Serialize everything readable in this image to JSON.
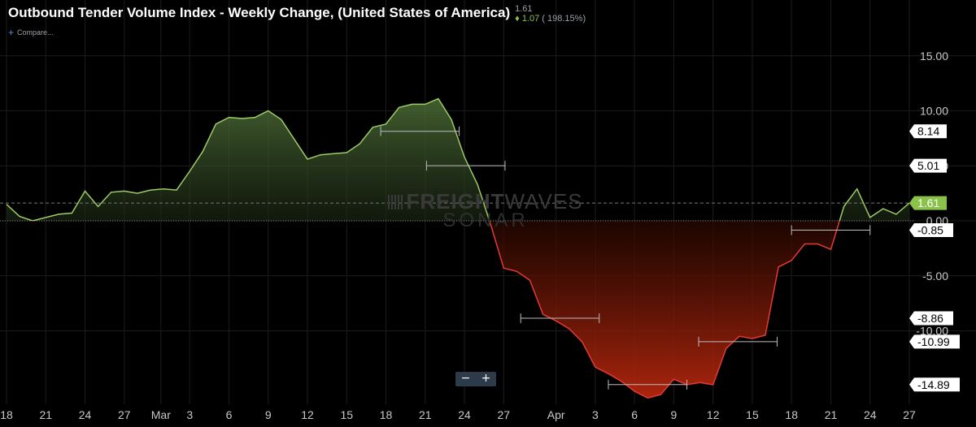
{
  "header": {
    "title": "Outbound Tender Volume Index - Weekly Change, (United States of America)",
    "last_value": "1.61",
    "change_arrow": "♦",
    "change": "1.07",
    "change_pct": "( 198.15%)"
  },
  "compare": {
    "label": "Compare...",
    "icon": "plus-icon"
  },
  "watermark": {
    "line1_bold": "FREIGHT",
    "line1_thin": "WAVES",
    "line2": "SONAR"
  },
  "zoom": {
    "minus": "−",
    "plus": "+"
  },
  "colors": {
    "background": "#000000",
    "positive_line": "#9ccc65",
    "negative_line": "#e53935",
    "grid": "#1c1c1c",
    "axis_text": "#c8c8c8",
    "current_tag": "#8bc34a"
  },
  "chart_data": {
    "type": "area",
    "title": "Outbound Tender Volume Index - Weekly Change, (United States of America)",
    "ylim": [
      -16.5,
      18.5
    ],
    "y_ticks": [
      15,
      10,
      5,
      0,
      -5,
      -10
    ],
    "y_tick_labels": [
      "15.00",
      "10.00",
      "5.00",
      "0.00",
      "-5.00",
      "-10.00"
    ],
    "x_ticks": [
      {
        "label": "18",
        "x": 0
      },
      {
        "label": "21",
        "x": 3
      },
      {
        "label": "24",
        "x": 6
      },
      {
        "label": "27",
        "x": 9
      },
      {
        "label": "Mar",
        "x": 11.8
      },
      {
        "label": "3",
        "x": 14
      },
      {
        "label": "6",
        "x": 17
      },
      {
        "label": "9",
        "x": 20
      },
      {
        "label": "12",
        "x": 23
      },
      {
        "label": "15",
        "x": 26
      },
      {
        "label": "18",
        "x": 29
      },
      {
        "label": "21",
        "x": 32
      },
      {
        "label": "24",
        "x": 35
      },
      {
        "label": "27",
        "x": 38
      },
      {
        "label": "Apr",
        "x": 42
      },
      {
        "label": "3",
        "x": 45
      },
      {
        "label": "6",
        "x": 48
      },
      {
        "label": "9",
        "x": 51
      },
      {
        "label": "12",
        "x": 54
      },
      {
        "label": "15",
        "x": 57
      },
      {
        "label": "18",
        "x": 60
      },
      {
        "label": "21",
        "x": 63
      },
      {
        "label": "24",
        "x": 66
      },
      {
        "label": "27",
        "x": 69
      }
    ],
    "series": [
      {
        "x": [
          0,
          1,
          2,
          3,
          4,
          5,
          6,
          7,
          8,
          9,
          10,
          11,
          12,
          13,
          14,
          15,
          16,
          17,
          18,
          19,
          20,
          21,
          22,
          23,
          24,
          25,
          26,
          27,
          28,
          29,
          30,
          31,
          32,
          33,
          34,
          35,
          36,
          37,
          38,
          39,
          40,
          41,
          42,
          43,
          44,
          45,
          46,
          47,
          48,
          49,
          50,
          51,
          52,
          53,
          54,
          55,
          56,
          57,
          58,
          59,
          60,
          61,
          62,
          63,
          64,
          65,
          66,
          67,
          68,
          69
        ],
        "values": [
          1.5,
          0.4,
          0.0,
          0.3,
          0.6,
          0.7,
          2.7,
          1.3,
          2.6,
          2.7,
          2.5,
          2.8,
          2.9,
          2.8,
          4.5,
          6.3,
          8.8,
          9.4,
          9.3,
          9.4,
          10.0,
          9.2,
          7.4,
          5.6,
          6.0,
          6.1,
          6.2,
          7.0,
          8.5,
          8.8,
          10.3,
          10.6,
          10.6,
          11.1,
          9.2,
          5.8,
          3.3,
          -0.3,
          -4.3,
          -4.6,
          -5.4,
          -8.5,
          -9.1,
          -9.8,
          -11.0,
          -13.3,
          -13.9,
          -14.6,
          -15.5,
          -16.1,
          -15.8,
          -14.4,
          -14.9,
          -14.7,
          -14.9,
          -11.6,
          -10.5,
          -10.7,
          -10.4,
          -4.2,
          -3.6,
          -2.1,
          -2.1,
          -2.6,
          1.3,
          2.9,
          0.3,
          1.1,
          0.6,
          1.61
        ]
      }
    ],
    "reference_lines": [
      {
        "value": 1.61,
        "style": "dashed"
      },
      {
        "value": 0.0,
        "style": "dotted"
      }
    ],
    "price_tags": [
      {
        "label": "8.14",
        "value": 8.14,
        "style": "white"
      },
      {
        "label": "5.01",
        "value": 5.01,
        "style": "white"
      },
      {
        "label": "1.61",
        "value": 1.61,
        "style": "green"
      },
      {
        "label": "-0.85",
        "value": -0.85,
        "style": "white"
      },
      {
        "label": "-8.86",
        "value": -8.86,
        "style": "white"
      },
      {
        "label": "-10.99",
        "value": -10.99,
        "style": "white"
      },
      {
        "label": "-14.89",
        "value": -14.89,
        "style": "white"
      }
    ],
    "range_markers": [
      {
        "x_start": 28.6,
        "x_end": 34.6,
        "value": 8.14
      },
      {
        "x_start": 32.1,
        "x_end": 38.1,
        "value": 5.01
      },
      {
        "x_start": 60.0,
        "x_end": 66.0,
        "value": -0.85
      },
      {
        "x_start": 39.3,
        "x_end": 45.3,
        "value": -8.86
      },
      {
        "x_start": 52.9,
        "x_end": 58.9,
        "value": -10.99
      },
      {
        "x_start": 46.0,
        "x_end": 52.0,
        "value": -14.89
      }
    ]
  }
}
